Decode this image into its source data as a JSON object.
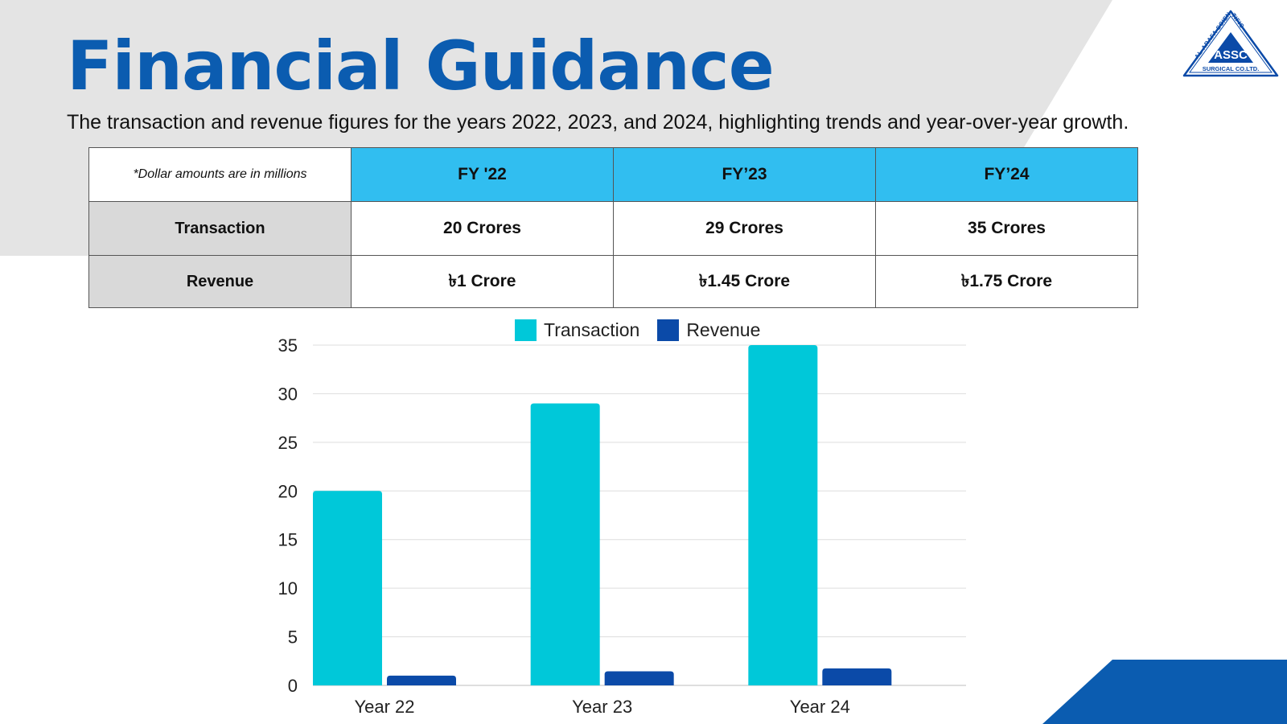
{
  "slide": {
    "title": "Financial Guidance",
    "subtitle": "The transaction and revenue figures for the years 2022, 2023, and 2024, highlighting trends and year-over-year growth."
  },
  "logo": {
    "top_text": "AL-ARAFA SCIENTIFIC",
    "center_text": "ASSC",
    "bottom_text": "SURGICAL CO.LTD."
  },
  "table": {
    "note": "*Dollar amounts are in millions",
    "columns": [
      "FY '22",
      "FY’23",
      "FY’24"
    ],
    "rows": [
      {
        "label": "Transaction",
        "values": [
          "20 Crores",
          "29 Crores",
          "35 Crores"
        ]
      },
      {
        "label": "Revenue",
        "values": [
          "৳1 Crore",
          "৳1.45 Crore",
          "৳1.75 Crore"
        ]
      }
    ]
  },
  "colors": {
    "title": "#0b5cb0",
    "header_fill": "#31bef0",
    "row_header_fill": "#d9d9d9",
    "background_panel": "#e4e4e4",
    "accent_corner": "#0b5cb0"
  },
  "chart_data": {
    "type": "bar",
    "categories": [
      "Year 22",
      "Year 23",
      "Year 24"
    ],
    "series": [
      {
        "name": "Transaction",
        "values": [
          20,
          29,
          35
        ],
        "color": "#00c8d9"
      },
      {
        "name": "Revenue",
        "values": [
          1,
          1.45,
          1.75
        ],
        "color": "#0b4aa8"
      }
    ],
    "ylim": [
      0,
      35
    ],
    "yticks": [
      0,
      5,
      10,
      15,
      20,
      25,
      30,
      35
    ],
    "grid": true,
    "legend": "top-center",
    "title": "",
    "xlabel": "",
    "ylabel": ""
  }
}
